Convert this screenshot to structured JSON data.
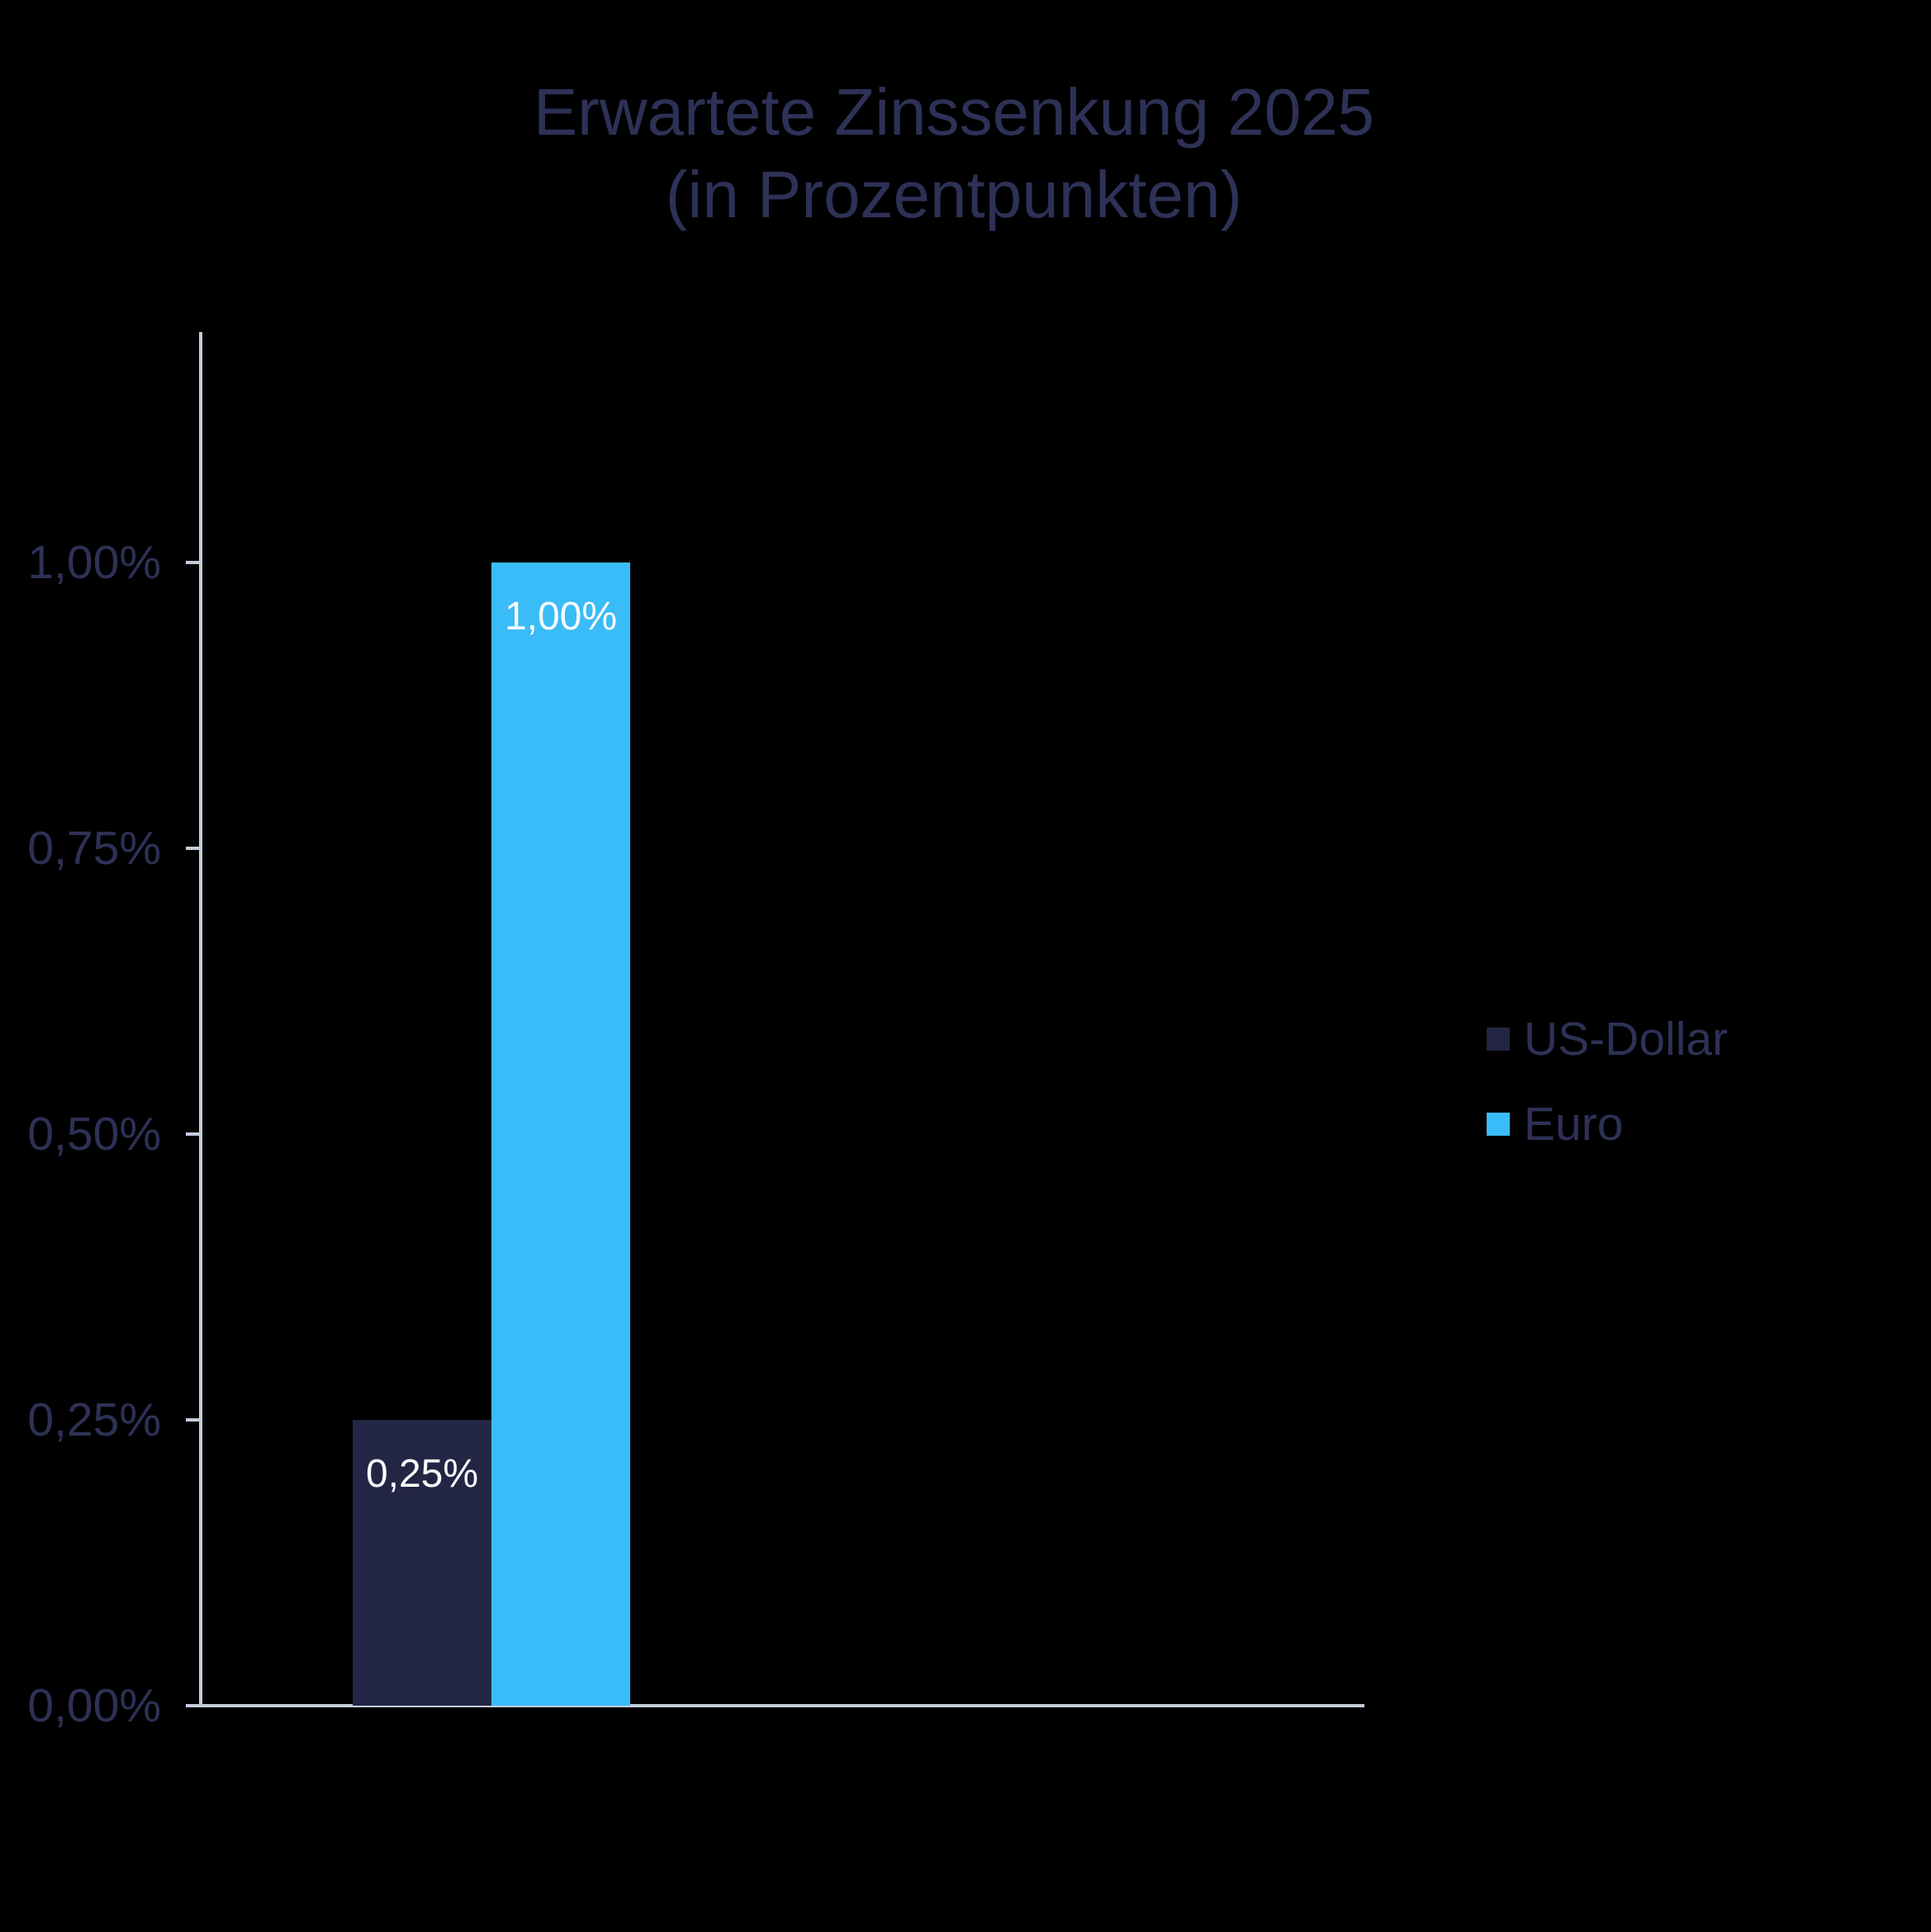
{
  "title": {
    "line1": "Erwartete Zinssenkung 2025",
    "line2": "(in Prozentpunkten)"
  },
  "chart_data": {
    "type": "bar",
    "title": "Erwartete Zinssenkung 2025 (in Prozentpunkten)",
    "categories": [
      "US-Dollar",
      "Euro"
    ],
    "series": [
      {
        "name": "US-Dollar",
        "value": 0.25,
        "label": "0,25%",
        "color": "#232544"
      },
      {
        "name": "Euro",
        "value": 1.0,
        "label": "1,00%",
        "color": "#3abcf8"
      }
    ],
    "ylabel": "",
    "xlabel": "",
    "ylim": [
      0,
      1.2
    ],
    "y_ticks": [
      {
        "value": 0,
        "label": "0,00%"
      },
      {
        "value": 0.25,
        "label": "0,25%"
      },
      {
        "value": 0.5,
        "label": "0,50%"
      },
      {
        "value": 0.75,
        "label": "0,75%"
      },
      {
        "value": 1.0,
        "label": "1,00%"
      }
    ],
    "grid": false,
    "legend_position": "right"
  },
  "colors": {
    "background": "#000000",
    "text": "#2e3156",
    "axis": "#c2cddc",
    "bar_label": "#fafbfc",
    "us_dollar": "#232544",
    "euro": "#3abcf8"
  }
}
